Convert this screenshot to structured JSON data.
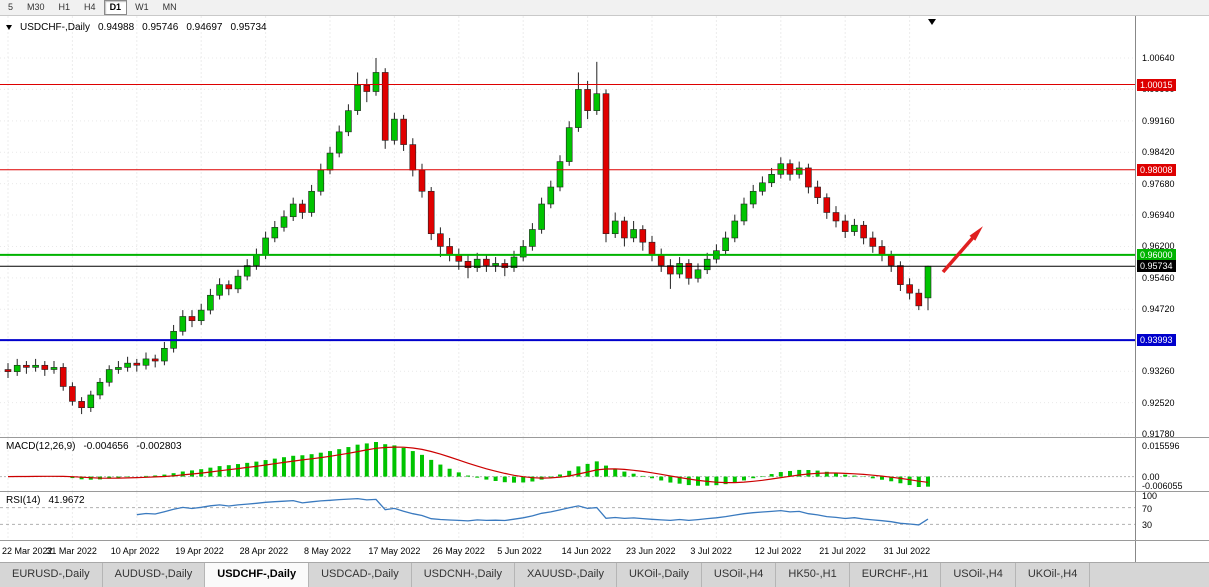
{
  "toolbar": {
    "periods": [
      {
        "label": "5",
        "active": false
      },
      {
        "label": "M30",
        "active": false
      },
      {
        "label": "H1",
        "active": false
      },
      {
        "label": "H4",
        "active": false
      },
      {
        "label": "D1",
        "active": true
      },
      {
        "label": "W1",
        "active": false
      },
      {
        "label": "MN",
        "active": false
      }
    ]
  },
  "header": {
    "symbol": "USDCHF-,Daily",
    "open": "0.94988",
    "high": "0.95746",
    "low": "0.94697",
    "close": "0.95734"
  },
  "price_axis": {
    "pmax": 1.0163,
    "pmin": 0.9171,
    "ticks": [
      "1.00640",
      "0.99900",
      "0.99160",
      "0.98420",
      "0.97680",
      "0.96940",
      "0.96200",
      "0.95460",
      "0.94720",
      "0.93980",
      "0.93260",
      "0.92520",
      "0.91780"
    ]
  },
  "levels": [
    {
      "price": 1.00015,
      "label": "1.00015",
      "color": "#dd0000",
      "text_color": "#ffffff",
      "thickness": 1
    },
    {
      "price": 0.98008,
      "label": "0.98008",
      "color": "#dd0000",
      "text_color": "#ffffff",
      "thickness": 1
    },
    {
      "price": 0.96,
      "label": "0.96000",
      "color": "#00b300",
      "text_color": "#ffffff",
      "thickness": 2
    },
    {
      "price": 0.95734,
      "label": "0.95734",
      "color": "#000000",
      "text_color": "#ffffff",
      "thickness": 1
    },
    {
      "price": 0.93993,
      "label": "0.93993",
      "color": "#0000cc",
      "text_color": "#ffffff",
      "thickness": 2
    }
  ],
  "chart_data": {
    "type": "candlestick",
    "symbol": "USDCHF-",
    "timeframe": "Daily",
    "bull_color": "#00c400",
    "bear_color": "#e00000",
    "label_every": 7,
    "x_labels": [
      "22 Mar 2022",
      "31 Mar 2022",
      "10 Apr 2022",
      "19 Apr 2022",
      "28 Apr 2022",
      "8 May 2022",
      "17 May 2022",
      "26 May 2022",
      "5 Jun 2022",
      "14 Jun 2022",
      "23 Jun 2022",
      "3 Jul 2022",
      "12 Jul 2022",
      "21 Jul 2022",
      "31 Jul 2022"
    ],
    "arrow_annotation": {
      "color": "#e02020",
      "from": [
        943,
        272
      ],
      "to": [
        977,
        233
      ]
    },
    "candles": [
      [
        0.933,
        0.9345,
        0.931,
        0.9325
      ],
      [
        0.9325,
        0.9355,
        0.9315,
        0.934
      ],
      [
        0.934,
        0.935,
        0.932,
        0.9335
      ],
      [
        0.9335,
        0.9355,
        0.9325,
        0.934
      ],
      [
        0.934,
        0.935,
        0.9315,
        0.933
      ],
      [
        0.933,
        0.935,
        0.932,
        0.9335
      ],
      [
        0.9335,
        0.9345,
        0.928,
        0.929
      ],
      [
        0.929,
        0.93,
        0.9245,
        0.9255
      ],
      [
        0.9255,
        0.9265,
        0.9225,
        0.924
      ],
      [
        0.924,
        0.928,
        0.923,
        0.927
      ],
      [
        0.927,
        0.931,
        0.926,
        0.93
      ],
      [
        0.93,
        0.934,
        0.929,
        0.933
      ],
      [
        0.933,
        0.935,
        0.932,
        0.9335
      ],
      [
        0.9335,
        0.936,
        0.9325,
        0.9345
      ],
      [
        0.9345,
        0.9355,
        0.9325,
        0.934
      ],
      [
        0.934,
        0.937,
        0.933,
        0.9355
      ],
      [
        0.9355,
        0.9365,
        0.9335,
        0.935
      ],
      [
        0.935,
        0.9395,
        0.934,
        0.938
      ],
      [
        0.938,
        0.9435,
        0.937,
        0.942
      ],
      [
        0.942,
        0.947,
        0.941,
        0.9455
      ],
      [
        0.9455,
        0.947,
        0.943,
        0.9445
      ],
      [
        0.9445,
        0.9485,
        0.9435,
        0.947
      ],
      [
        0.947,
        0.952,
        0.946,
        0.9505
      ],
      [
        0.9505,
        0.9545,
        0.9495,
        0.953
      ],
      [
        0.953,
        0.954,
        0.9505,
        0.952
      ],
      [
        0.952,
        0.9565,
        0.951,
        0.955
      ],
      [
        0.955,
        0.959,
        0.954,
        0.9575
      ],
      [
        0.9575,
        0.9615,
        0.9565,
        0.96
      ],
      [
        0.96,
        0.9655,
        0.959,
        0.964
      ],
      [
        0.964,
        0.968,
        0.963,
        0.9665
      ],
      [
        0.9665,
        0.9705,
        0.9655,
        0.969
      ],
      [
        0.969,
        0.9735,
        0.968,
        0.972
      ],
      [
        0.972,
        0.973,
        0.9685,
        0.97
      ],
      [
        0.97,
        0.9765,
        0.969,
        0.975
      ],
      [
        0.975,
        0.9815,
        0.974,
        0.98
      ],
      [
        0.98,
        0.9855,
        0.979,
        0.984
      ],
      [
        0.984,
        0.9905,
        0.983,
        0.989
      ],
      [
        0.989,
        0.9955,
        0.988,
        0.994
      ],
      [
        0.994,
        1.003,
        0.993,
        1.0
      ],
      [
        1.0,
        1.0015,
        0.996,
        0.9985
      ],
      [
        0.9985,
        1.0064,
        0.9975,
        1.003
      ],
      [
        1.003,
        1.004,
        0.985,
        0.987
      ],
      [
        0.987,
        0.9935,
        0.986,
        0.992
      ],
      [
        0.992,
        0.993,
        0.9845,
        0.986
      ],
      [
        0.986,
        0.9875,
        0.9785,
        0.98
      ],
      [
        0.98,
        0.9815,
        0.9735,
        0.975
      ],
      [
        0.975,
        0.976,
        0.9635,
        0.965
      ],
      [
        0.965,
        0.9665,
        0.9595,
        0.962
      ],
      [
        0.962,
        0.964,
        0.9585,
        0.96
      ],
      [
        0.96,
        0.9615,
        0.9565,
        0.9585
      ],
      [
        0.9585,
        0.96,
        0.9545,
        0.957
      ],
      [
        0.957,
        0.9605,
        0.956,
        0.959
      ],
      [
        0.959,
        0.96,
        0.956,
        0.9575
      ],
      [
        0.9575,
        0.9595,
        0.956,
        0.958
      ],
      [
        0.958,
        0.959,
        0.955,
        0.957
      ],
      [
        0.957,
        0.961,
        0.956,
        0.9595
      ],
      [
        0.9595,
        0.9635,
        0.9585,
        0.962
      ],
      [
        0.962,
        0.9675,
        0.961,
        0.966
      ],
      [
        0.966,
        0.9735,
        0.965,
        0.972
      ],
      [
        0.972,
        0.9775,
        0.971,
        0.976
      ],
      [
        0.976,
        0.9835,
        0.975,
        0.982
      ],
      [
        0.982,
        0.9915,
        0.981,
        0.99
      ],
      [
        0.99,
        1.003,
        0.989,
        0.999
      ],
      [
        0.999,
        1.001,
        0.992,
        0.994
      ],
      [
        0.994,
        1.0055,
        0.993,
        0.998
      ],
      [
        0.998,
        0.999,
        0.963,
        0.965
      ],
      [
        0.965,
        0.97,
        0.964,
        0.968
      ],
      [
        0.968,
        0.969,
        0.962,
        0.964
      ],
      [
        0.964,
        0.968,
        0.963,
        0.966
      ],
      [
        0.966,
        0.967,
        0.961,
        0.963
      ],
      [
        0.963,
        0.9645,
        0.9585,
        0.96
      ],
      [
        0.96,
        0.9615,
        0.956,
        0.9575
      ],
      [
        0.9575,
        0.959,
        0.952,
        0.9555
      ],
      [
        0.9555,
        0.9595,
        0.9545,
        0.958
      ],
      [
        0.958,
        0.959,
        0.953,
        0.9545
      ],
      [
        0.9545,
        0.958,
        0.9535,
        0.9565
      ],
      [
        0.9565,
        0.9605,
        0.9555,
        0.959
      ],
      [
        0.959,
        0.9625,
        0.958,
        0.961
      ],
      [
        0.961,
        0.9655,
        0.96,
        0.964
      ],
      [
        0.964,
        0.9695,
        0.963,
        0.968
      ],
      [
        0.968,
        0.9735,
        0.967,
        0.972
      ],
      [
        0.972,
        0.9765,
        0.971,
        0.975
      ],
      [
        0.975,
        0.9785,
        0.974,
        0.977
      ],
      [
        0.977,
        0.9805,
        0.976,
        0.979
      ],
      [
        0.979,
        0.983,
        0.978,
        0.9815
      ],
      [
        0.9815,
        0.9825,
        0.9775,
        0.979
      ],
      [
        0.979,
        0.982,
        0.978,
        0.9805
      ],
      [
        0.9805,
        0.9815,
        0.9745,
        0.976
      ],
      [
        0.976,
        0.9775,
        0.972,
        0.9735
      ],
      [
        0.9735,
        0.9745,
        0.9685,
        0.97
      ],
      [
        0.97,
        0.9715,
        0.9665,
        0.968
      ],
      [
        0.968,
        0.9695,
        0.964,
        0.9655
      ],
      [
        0.9655,
        0.9685,
        0.9645,
        0.967
      ],
      [
        0.967,
        0.968,
        0.9625,
        0.964
      ],
      [
        0.964,
        0.9655,
        0.9605,
        0.962
      ],
      [
        0.962,
        0.9635,
        0.9585,
        0.96
      ],
      [
        0.96,
        0.961,
        0.956,
        0.9575
      ],
      [
        0.9575,
        0.9585,
        0.9515,
        0.953
      ],
      [
        0.953,
        0.9545,
        0.9495,
        0.951
      ],
      [
        0.951,
        0.952,
        0.947,
        0.948
      ],
      [
        0.94988,
        0.95746,
        0.94697,
        0.95734
      ]
    ]
  },
  "macd_panel": {
    "title": "MACD(12,26,9)",
    "value_main": "-0.004656",
    "value_signal": "-0.002803",
    "axis_labels": [
      "0.015596",
      "0.00",
      "-0.006055"
    ],
    "histogram_color": "#00c400",
    "signal_color": "#cc0000",
    "params": {
      "fast": 12,
      "slow": 26,
      "signal": 9
    }
  },
  "rsi_panel": {
    "title": "RSI(14)",
    "value": "41.9672",
    "axis_labels": [
      "100",
      "70",
      "30"
    ],
    "levels": [
      70,
      30
    ],
    "line_color": "#3a7abf",
    "period": 14
  },
  "tabs": [
    {
      "label": "EURUSD-,Daily",
      "active": false
    },
    {
      "label": "AUDUSD-,Daily",
      "active": false
    },
    {
      "label": "USDCHF-,Daily",
      "active": true
    },
    {
      "label": "USDCAD-,Daily",
      "active": false
    },
    {
      "label": "USDCNH-,Daily",
      "active": false
    },
    {
      "label": "XAUUSD-,Daily",
      "active": false
    },
    {
      "label": "UKOil-,Daily",
      "active": false
    },
    {
      "label": "USOil-,H4",
      "active": false
    },
    {
      "label": "HK50-,H1",
      "active": false
    },
    {
      "label": "EURCHF-,H1",
      "active": false
    },
    {
      "label": "USOil-,H4",
      "active": false
    },
    {
      "label": "UKOil-,H4",
      "active": false
    }
  ]
}
